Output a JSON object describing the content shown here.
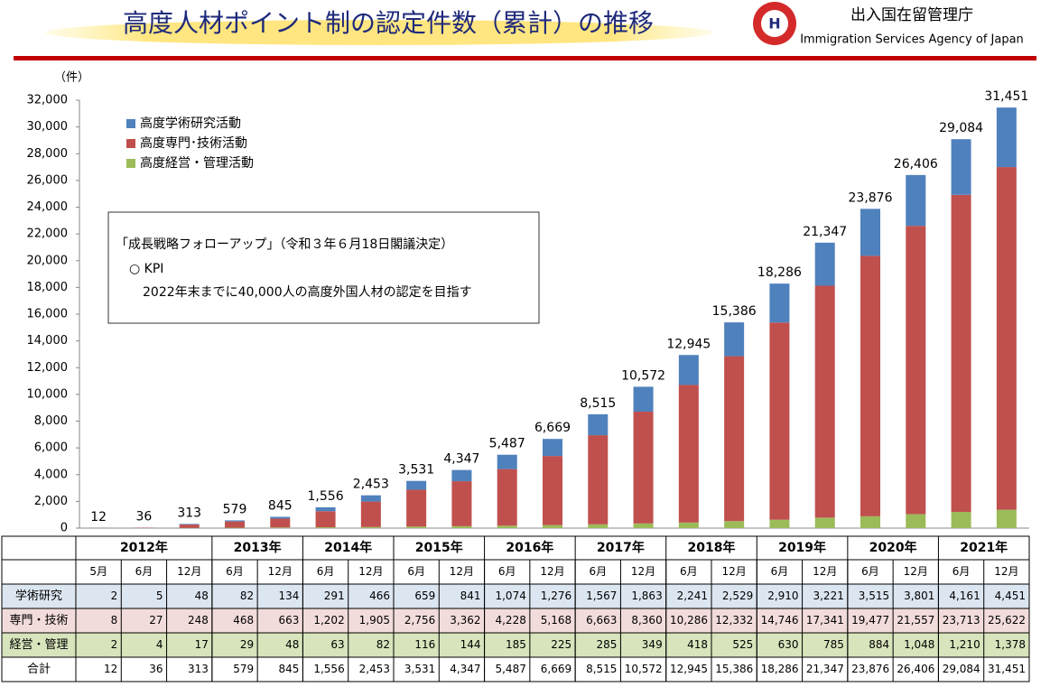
{
  "chart_data": {
    "type": "stacked_bar",
    "title": "高度人材ポイント制の認定件数（累計）の推移",
    "organization": "出入国在留管理庁",
    "organization_en": "Immigration Services Agency of Japan",
    "y_unit": "（件）",
    "note": [
      "「成長戦略フォローアップ」（令和３年６月18日閣議決定）",
      "○ KPI",
      "2022年末までに40,000人の高度外国人材の認定を目指す"
    ],
    "groups": [
      {
        "label": "2012年",
        "categories": [
          "5月",
          "6月",
          "12月"
        ]
      },
      {
        "label": "2013年",
        "categories": [
          "6月",
          "12月"
        ]
      },
      {
        "label": "2014年",
        "categories": [
          "6月",
          "12月"
        ]
      },
      {
        "label": "2015年",
        "categories": [
          "6月",
          "12月"
        ]
      },
      {
        "label": "2016年",
        "categories": [
          "6月",
          "12月"
        ]
      },
      {
        "label": "2017年",
        "categories": [
          "6月",
          "12月"
        ]
      },
      {
        "label": "2018年",
        "categories": [
          "6月",
          "12月"
        ]
      },
      {
        "label": "2019年",
        "categories": [
          "6月",
          "12月"
        ]
      },
      {
        "label": "2020年",
        "categories": [
          "6月",
          "12月"
        ]
      },
      {
        "label": "2021年",
        "categories": [
          "6月",
          "12月"
        ]
      }
    ],
    "series": [
      {
        "name": "高度学術研究活動",
        "row_label": "学術研究",
        "color": "#4f81bd",
        "values": [
          2,
          5,
          48,
          82,
          134,
          291,
          466,
          659,
          841,
          1074,
          1276,
          1567,
          1863,
          2241,
          2529,
          2910,
          3221,
          3515,
          3801,
          4161,
          4451
        ],
        "value_labels": [
          "2",
          "5",
          "48",
          "82",
          "134",
          "291",
          "466",
          "659",
          "841",
          "1,074",
          "1,276",
          "1,567",
          "1,863",
          "2,241",
          "2,529",
          "2,910",
          "3,221",
          "3,515",
          "3,801",
          "4,161",
          "4,451"
        ]
      },
      {
        "name": "高度専門･技術活動",
        "row_label": "専門・技術",
        "color": "#c0504d",
        "values": [
          8,
          27,
          248,
          468,
          663,
          1202,
          1905,
          2756,
          3362,
          4228,
          5168,
          6663,
          8360,
          10286,
          12332,
          14746,
          17341,
          19477,
          21557,
          23713,
          25622
        ],
        "value_labels": [
          "8",
          "27",
          "248",
          "468",
          "663",
          "1,202",
          "1,905",
          "2,756",
          "3,362",
          "4,228",
          "5,168",
          "6,663",
          "8,360",
          "10,286",
          "12,332",
          "14,746",
          "17,341",
          "19,477",
          "21,557",
          "23,713",
          "25,622"
        ]
      },
      {
        "name": "高度経営・管理活動",
        "row_label": "経営・管理",
        "color": "#9bbb59",
        "values": [
          2,
          4,
          17,
          29,
          48,
          63,
          82,
          116,
          144,
          185,
          225,
          285,
          349,
          418,
          525,
          630,
          785,
          884,
          1048,
          1210,
          1378
        ],
        "value_labels": [
          "2",
          "4",
          "17",
          "29",
          "48",
          "63",
          "82",
          "116",
          "144",
          "185",
          "225",
          "285",
          "349",
          "418",
          "525",
          "630",
          "785",
          "884",
          "1,048",
          "1,210",
          "1,378"
        ]
      }
    ],
    "totals": {
      "row_label": "合計",
      "values": [
        12,
        36,
        313,
        579,
        845,
        1556,
        2453,
        3531,
        4347,
        5487,
        6669,
        8515,
        10572,
        12945,
        15386,
        18286,
        21347,
        23876,
        26406,
        29084,
        31451
      ],
      "value_labels": [
        "12",
        "36",
        "313",
        "579",
        "845",
        "1,556",
        "2,453",
        "3,531",
        "4,347",
        "5,487",
        "6,669",
        "8,515",
        "10,572",
        "12,945",
        "15,386",
        "18,286",
        "21,347",
        "23,876",
        "26,406",
        "29,084",
        "31,451"
      ]
    },
    "ylim": [
      0,
      32000
    ],
    "yticks": [
      0,
      {
        "value": 2000,
        "label": "2,000"
      },
      {
        "value": 4000,
        "label": "4,000"
      },
      {
        "value": 6000,
        "label": "6,000"
      },
      {
        "value": 8000,
        "label": "8,000"
      },
      {
        "value": 10000,
        "label": "10,000"
      },
      {
        "value": 12000,
        "label": "12,000"
      },
      {
        "value": 14000,
        "label": "14,000"
      },
      {
        "value": 16000,
        "label": "16,000"
      },
      {
        "value": 18000,
        "label": "18,000"
      },
      {
        "value": 20000,
        "label": "20,000"
      },
      {
        "value": 22000,
        "label": "22,000"
      },
      {
        "value": 24000,
        "label": "24,000"
      },
      {
        "value": 26000,
        "label": "26,000"
      },
      {
        "value": 28000,
        "label": "28,000"
      },
      {
        "value": 30000,
        "label": "30,000"
      },
      {
        "value": 32000,
        "label": "32,000"
      }
    ],
    "legend": "top-left"
  }
}
